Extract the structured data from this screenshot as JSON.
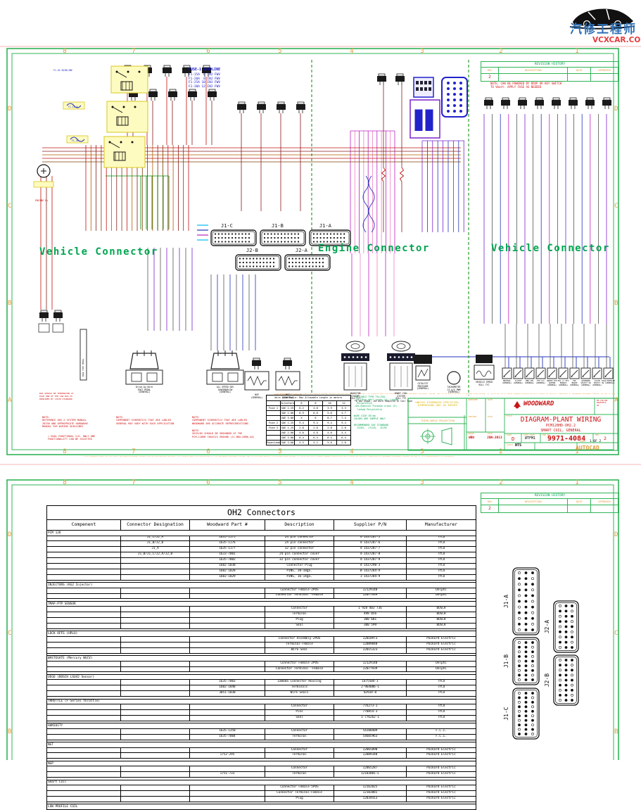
{
  "brand": {
    "chinese": "汽修工程师",
    "site": "VCXCAR.COM"
  },
  "sheet1": {
    "zones_top": [
      "8",
      "7",
      "6",
      "5",
      "4",
      "3",
      "2",
      "1"
    ],
    "zones_bottom": [
      "8",
      "7",
      "6",
      "5",
      "4",
      "3",
      "2",
      "1"
    ],
    "zones_side": [
      "D",
      "C",
      "B",
      "A"
    ],
    "revision": {
      "title": "REVISION HISTORY",
      "headers": [
        "REV",
        "DESCRIPTION",
        "DATE",
        "APPROVED"
      ],
      "rev": "2"
    },
    "power_note": "NOTE: CAN BE POWERED BY DRVP OR KEY SWITCH\nTO Vbatt. APPLY FUSE AS NEEDED",
    "fuse_guide": {
      "title": "FUSE-1 GUIDLINE",
      "lines": [
        "F1-15A  6 INJ FWV",
        "F1-20A  8 INJ FWV",
        "F1-25A 10 INJ FWV",
        "F1-30A 12 INJ FWV"
      ]
    },
    "fuse_labels": [
      "F1-XX GUIDLINE",
      "F1-15 A",
      "F1-20"
    ],
    "engine_b_label": "ENGINE B+",
    "can_note": "BUS SHOULD BE TERMINATED AT\nEACH END OF THE CAN BUS AS\nREQUIRED BY J1939 STANDARD",
    "section_labels": {
      "vehicle_left": "Vehicle Connector",
      "engine": "Engine Connector",
      "vehicle_right": "Vehicle Connector"
    },
    "connector_labels": {
      "j1c": "J1-C",
      "j1b": "J1-B",
      "j1a": "J1-A",
      "j2b": "J2-B",
      "j2a": "J2-A"
    },
    "notes": [
      "NOTE:\nREFERENCE OH2.2 SYSTEM MANUAL\n26330 AND APPROPRIATE HARDWARE\nMANUAL FOR WIRING GUIDLINES",
      "DUAL FUNCTIONAL I/O- ONLY ONE\nFUNCTIONALITY CAN BE SELECTED",
      "NOTE:\nCOMPONENT SCHEMATICS THAT ARE LABLED\nGENERAL MAY VARY WITH EACH APPLICATION",
      "NOTE:\nCOMPONENT SCHEMATICS THAT ARE LABLED\nWOODWARD ARE ACCURATE REPRESENTATIONS",
      "NOTE:\nSHIELDS SHOULD BE GROUNDED AT THE\nPCM-128HB CHASSIS GROUND (J1-B0A,HDR6,A4)"
    ],
    "wire_table": {
      "title": "Wire Size Table: Max Allowable Length in meters",
      "col_headers": [
        "",
        "Injectors",
        "6",
        "8",
        "10",
        "12"
      ],
      "rows": [
        [
          "Fuse 1",
          "SAE 1.25",
          "6.2",
          "4.8",
          "3.9",
          "3.3"
        ],
        [
          "",
          "SAE 2.00",
          "8.9",
          "6.8",
          "5.6",
          "4.7"
        ],
        [
          "",
          "SAE 3.00",
          "X",
          "6",
          "8.7",
          "7.4"
        ],
        [
          "Fuse 2",
          "SAE 1.25",
          "9.4",
          "9.4",
          "9.4",
          "9.4"
        ],
        [
          "Fuse 3",
          "SAE 1.25",
          "2.8",
          "2.8",
          "2.8",
          "2.8"
        ],
        [
          "",
          "SAE 2.00",
          "4.0",
          "4.0",
          "4.0",
          "4.4"
        ],
        [
          "",
          "SAE 3.00",
          "6.4",
          "6.4",
          "6.4",
          "6.4"
        ],
        [
          "PowerLead",
          "SAE 3.00",
          "5.5",
          "5.2",
          "5.0",
          "2.8"
        ]
      ]
    },
    "materials": [
      "SAE CABLE TYPE TXL/GXL",
      "-TXL(Thin Wall cross (X) linked",
      "  Polyolefin)",
      "-GXL(General Purpose cross (X)",
      "  linked Polyolefin)",
      "",
      "WIRE SIZE IN mm",
      "COLORS ARE SAMPLE ONLY",
      "",
      "RECOMMENDED SAE STANDARD",
      "  J2202,  J1128,  J2192"
    ],
    "spec_note": "UNLESS OTHERWISE SPECIFIED,\nDIMENSIONS ARE IN INCHES",
    "projection_label": "THIRD ANGLE PROJECTION",
    "legal": "THIS DRAWING SHALL NOT BE USED FOR MANUFACTURING, PRODUCTION OR PROCUREMENT WITHOUT THE EXPRESS WRITTEN PERMISSION OF THE WOODWARD GOVERNOR COMPANY AND IS ON LOAN SUBJECT TO RETURN UPON DEMAND. IF ACCEPTED IN A FORMAL MANNER ASSOCIATED WITH GOODS OR SERVICE FURNISHED BY WOODWARD GOVERNOR COMPANY OR ONE OF ITS SUBSIDIARIES, IS APPROVED",
    "title_block": {
      "company": "WOODWARD",
      "stamp": "PE-COLLAB\nGRAPHICS\nOK",
      "approval_rows": [
        [
          "APPROVED",
          "DATE"
        ],
        [
          "CHECKED",
          "DATE"
        ],
        [
          "DRAWN",
          "DATE"
        ]
      ],
      "drawn_by": "WBU",
      "drawn_date": "JUN-2013",
      "title_label": "TITLE",
      "title": "DIAGRAM-PLANT WIRING",
      "subtitle1": "PCM128HD-OH2.2",
      "subtitle2": "SMART COIL, GENERAL",
      "size_label": "SIZE",
      "size": "D",
      "cage_label": "CAGE CODE",
      "cage": "ØTFM1",
      "dwg_label": "DWG NO.",
      "dwg": "9971-4084",
      "rev_label": "REV",
      "rev": "2",
      "scale_label": "SCALE",
      "scale": "NTS",
      "sheet_label": "SHEET",
      "sheet": "1 OF 2",
      "autocad": "AUTOCAD"
    },
    "component_labels": [
      "Drive-by-Wire\nFOOT PEDAL\n(GENERAL)",
      "ALL SPEED GOV\nGOVERNOR/SW\n(GENERAL)",
      "NGP\n(GENERAL)",
      "NGT\n(GENERAL)",
      "INJECTOR\nSYSTEM\nBILL TYC",
      "SMART COIL\nSYSTEM\nBILL TYC",
      "*6 INJ Shown, +6V Wire Required In Coil Type",
      "CATALYST\nPRESSURE\n(GENERAL)",
      "TACHOMETER\n12 A/V PWM\n(GENERAL)",
      "VEHICLE SPEED\nBILL TYC",
      "DUAL FOOT\nPEDAL"
    ],
    "switch_labels": [
      "NEUTRAL\n(GENERAL)",
      "CLUTCH\n(GENERAL)",
      "DBW LED\n(GENERAL)",
      "PTO A/C\n(GENERAL)",
      "BRAKE PTO\nGOVERN\n(GENERAL)",
      "MIL or PTO\nENABLE\n(GENERAL)",
      "TNC\nBRAKE\n(GENERAL)",
      "GOVERNOR\nSELECT SW\n(GENERAL)",
      "CALIB\nSELECT\n(GENERAL)",
      "DIAG/SERVICE\nSW (GENERAL)"
    ]
  },
  "sheet2": {
    "zones_top": [
      "8",
      "7",
      "6",
      "5",
      "4",
      "3",
      "2",
      "1"
    ],
    "zones_side": [
      "D",
      "C",
      "B"
    ],
    "revision": {
      "title": "REVISION HISTORY",
      "headers": [
        "REV",
        "DESCRIPTION",
        "DATE",
        "APPROVED"
      ],
      "rev": "2"
    },
    "connector_labels": [
      "J1-A",
      "J1-B",
      "J1-C",
      "J2-A",
      "J2-B"
    ],
    "table": {
      "title": "OH2 Connectors",
      "headers": [
        "Compenent",
        "Connector Designation",
        "Woodward Part #",
        "Description",
        "Supplier P/N",
        "Manufacturer"
      ],
      "sections": [
        {
          "name": "PCM 128",
          "rows": [
            [
              "J1_C/J2_A",
              "1635-1175",
              "24 pin connector",
              "4-1437287-5",
              "TYCO"
            ],
            [
              "J1_B/J2_B",
              "1635-1176",
              "24 pin connector",
              "4-1437287-6",
              "TYCO"
            ],
            [
              "J1_A",
              "1635-1177",
              "32 pin connector",
              "4-1437287-7",
              "TYCO"
            ],
            [
              "J1_B/J1_C/J2_A/J2_B",
              "1633-7001",
              "24 pin connector cover",
              "4-1437287-8",
              "TYCO"
            ],
            [
              "",
              "1635-7002",
              "32 pin connector cover",
              "4-1437287-9",
              "TYCO"
            ],
            [
              "",
              "1602-1030",
              "Connector Plug",
              "4-1437290-3",
              "TYCO"
            ],
            [
              "",
              "1602-1028",
              "PINS, 20-18ga.",
              "0-1437284-9",
              "TYCO"
            ],
            [
              "",
              "1602-1029",
              "PINS, 16-14ga.",
              "1-1437284-9",
              "TYCO"
            ]
          ]
        },
        {
          "name": "INJECTORS (KG2 Injector)",
          "rows": [
            [
              "",
              "",
              "Connector Female-2POS",
              "12129140",
              "Delphi"
            ],
            [
              "",
              "",
              "Connector Terminal -Female",
              "12077939",
              "Delphi"
            ]
          ]
        },
        {
          "name": "TMAP-PTP SENSOR",
          "rows": [
            [
              "",
              "",
              "Connector",
              "1 928 403 736",
              "BOSCH"
            ],
            [
              "",
              "",
              "Terminal",
              "498 056",
              "BOSCH"
            ],
            [
              "",
              "",
              "Plug",
              "300 681",
              "BOSCH"
            ],
            [
              "",
              "",
              "Seal",
              "300 599",
              "BOSCH"
            ]
          ]
        },
        {
          "name": "LOCK OFFS (HPLO)",
          "rows": [
            [
              "",
              "",
              "Connector Assembly-2POS",
              "12010973",
              "Packard Electric"
            ],
            [
              "",
              "",
              "Terminal-Female",
              "12089040",
              "Packard Electric"
            ],
            [
              "",
              "",
              "Wire Seal",
              "12015323",
              "Packard Electric"
            ]
          ]
        },
        {
          "name": "WASTEGATE (Mercury WGCV)",
          "rows": [
            [
              "",
              "",
              "Connector Female-2POS",
              "12129140",
              "Delphi"
            ],
            [
              "",
              "",
              "Connector Terminal -Female",
              "12077939",
              "Delphi"
            ]
          ]
        },
        {
          "name": "UEGO (BOSCH LSU42 Sensor)",
          "rows": [
            [
              "",
              "1635-7003",
              "Lambda Connector Housing",
              "1475504-1",
              "TYCO"
            ],
            [
              "",
              "1602-1048",
              "Terminals",
              "2-964086-1",
              "TYCO"
            ],
            [
              "",
              "3051-1030",
              "Wire Seals",
              "82934-0",
              "TYCO"
            ]
          ]
        },
        {
          "name": "THROTTLE (F-Series throttle)",
          "rows": [
            [
              "",
              "",
              "Connector",
              "776273-1",
              "TYCO"
            ],
            [
              "",
              "",
              "Pins",
              "770854-3",
              "TYCO"
            ],
            [
              "",
              "",
              "Seal",
              "1-776262-1",
              "TYCO"
            ]
          ]
        },
        {
          "name": "HUMIDITY",
          "rows": [
            [
              "",
              "1635-1350",
              "Connector",
              "54200409",
              "F.C.I."
            ],
            [
              "",
              "1635-7004",
              "Terminal",
              "54605963",
              "F.C.I."
            ]
          ]
        },
        {
          "name": "NGT",
          "rows": [
            [
              "",
              "",
              "Connector",
              "12065890",
              "Packard Electric"
            ],
            [
              "",
              "1752-295",
              "Terminal",
              "12089340",
              "Packard Electric"
            ]
          ]
        },
        {
          "name": "NGP",
          "rows": [
            [
              "",
              "",
              "Connector",
              "12065287",
              "Packard Electric"
            ],
            [
              "",
              "1751-733",
              "Terminal",
              "12103881-L",
              "Packard Electric"
            ]
          ]
        },
        {
          "name": "Smart Coil",
          "rows": [
            [
              "",
              "",
              "Connector Female-5POS",
              "12162825",
              "Packard Electric"
            ],
            [
              "",
              "",
              "Connector Terminal-Female",
              "12103881",
              "Packard Electric"
            ],
            [
              "",
              "",
              "Plug",
              "12034413",
              "Packard Electric"
            ]
          ]
        },
        {
          "name": "LOW PROFILE COIL",
          "rows": []
        }
      ]
    }
  }
}
